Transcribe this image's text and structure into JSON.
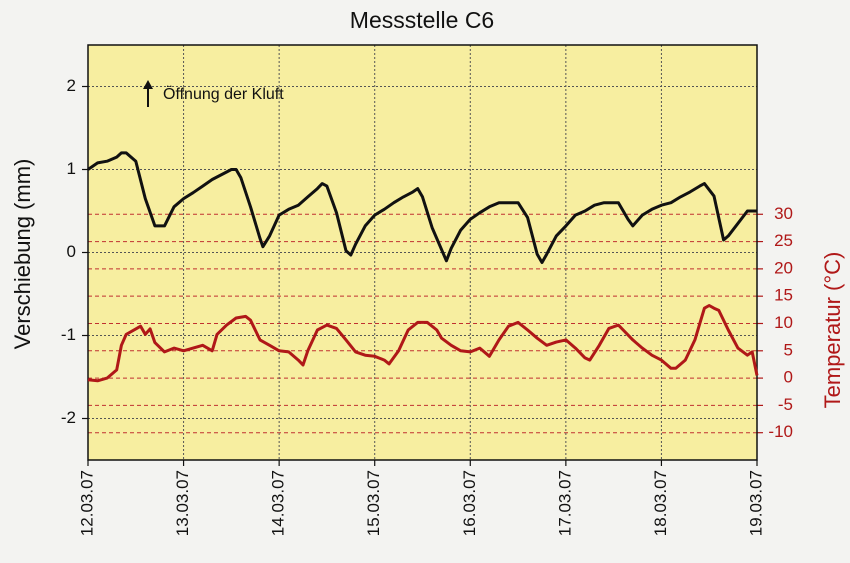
{
  "chart_data": {
    "type": "line",
    "title": "Messstelle C6",
    "y_label": "Verschiebung (mm)",
    "y2_label": "Temperatur (°C)",
    "annotation": "Öffnung der Kluft",
    "xlim": [
      0,
      7
    ],
    "xticks": [
      {
        "value": 0,
        "label": "12.03.07"
      },
      {
        "value": 1,
        "label": "13.03.07"
      },
      {
        "value": 2,
        "label": "14.03.07"
      },
      {
        "value": 3,
        "label": "15.03.07"
      },
      {
        "value": 4,
        "label": "16.03.07"
      },
      {
        "value": 5,
        "label": "17.03.07"
      },
      {
        "value": 6,
        "label": "18.03.07"
      },
      {
        "value": 7,
        "label": "19.03.07"
      }
    ],
    "ylim": [
      -2.5,
      2.5
    ],
    "yticks": [
      -2,
      -1,
      0,
      1,
      2
    ],
    "y2lim": [
      -15,
      61
    ],
    "y2ticks": [
      30,
      25,
      20,
      15,
      10,
      5,
      0,
      -5,
      -10
    ],
    "grid": true,
    "background": "#f7eea0",
    "series": [
      {
        "color": "#111111",
        "x": [
          0,
          0.1,
          0.2,
          0.3,
          0.35,
          0.4,
          0.5,
          0.6,
          0.7,
          0.8,
          0.9,
          1.0,
          1.1,
          1.2,
          1.3,
          1.4,
          1.5,
          1.55,
          1.6,
          1.7,
          1.8,
          1.83,
          1.9,
          2.0,
          2.1,
          2.2,
          2.3,
          2.4,
          2.45,
          2.5,
          2.6,
          2.7,
          2.75,
          2.8,
          2.9,
          3.0,
          3.1,
          3.2,
          3.3,
          3.4,
          3.45,
          3.5,
          3.6,
          3.75,
          3.8,
          3.9,
          4.0,
          4.1,
          4.2,
          4.3,
          4.5,
          4.6,
          4.7,
          4.75,
          4.8,
          4.9,
          5.0,
          5.1,
          5.2,
          5.3,
          5.4,
          5.55,
          5.65,
          5.7,
          5.8,
          5.9,
          6.0,
          6.1,
          6.2,
          6.3,
          6.4,
          6.45,
          6.55,
          6.65,
          6.7,
          6.8,
          6.9,
          7.0
        ],
        "values": [
          1.0,
          1.08,
          1.1,
          1.15,
          1.2,
          1.2,
          1.1,
          0.65,
          0.32,
          0.32,
          0.55,
          0.65,
          0.72,
          0.8,
          0.88,
          0.94,
          1.0,
          1.0,
          0.9,
          0.55,
          0.17,
          0.07,
          0.2,
          0.45,
          0.52,
          0.57,
          0.67,
          0.77,
          0.83,
          0.8,
          0.48,
          0.02,
          -0.03,
          0.1,
          0.32,
          0.45,
          0.52,
          0.6,
          0.67,
          0.73,
          0.77,
          0.67,
          0.3,
          -0.1,
          0.05,
          0.27,
          0.4,
          0.48,
          0.55,
          0.6,
          0.6,
          0.42,
          -0.02,
          -0.12,
          -0.02,
          0.2,
          0.32,
          0.45,
          0.5,
          0.57,
          0.6,
          0.6,
          0.4,
          0.32,
          0.45,
          0.52,
          0.57,
          0.6,
          0.67,
          0.73,
          0.8,
          0.83,
          0.68,
          0.15,
          0.2,
          0.35,
          0.5,
          0.5
        ]
      },
      {
        "color": "#b01818",
        "axis": "y2",
        "x": [
          0,
          0.1,
          0.2,
          0.3,
          0.35,
          0.4,
          0.5,
          0.55,
          0.6,
          0.65,
          0.7,
          0.8,
          0.9,
          1.0,
          1.1,
          1.2,
          1.3,
          1.35,
          1.45,
          1.55,
          1.65,
          1.7,
          1.8,
          1.9,
          2.0,
          2.1,
          2.2,
          2.25,
          2.3,
          2.4,
          2.5,
          2.6,
          2.7,
          2.8,
          2.9,
          3.0,
          3.1,
          3.15,
          3.25,
          3.35,
          3.45,
          3.55,
          3.65,
          3.7,
          3.8,
          3.9,
          4.0,
          4.1,
          4.2,
          4.3,
          4.4,
          4.5,
          4.6,
          4.7,
          4.8,
          4.9,
          5.0,
          5.1,
          5.2,
          5.25,
          5.35,
          5.45,
          5.55,
          5.6,
          5.7,
          5.8,
          5.9,
          6.0,
          6.1,
          6.15,
          6.25,
          6.35,
          6.45,
          6.5,
          6.55,
          6.6,
          6.7,
          6.8,
          6.9,
          6.95,
          7.0
        ],
        "values": [
          -0.3,
          -0.5,
          0,
          1.5,
          6,
          8,
          9,
          9.5,
          8,
          9,
          6.5,
          4.8,
          5.5,
          5,
          5.5,
          6,
          5,
          8,
          9.7,
          11,
          11.3,
          10.6,
          7,
          6,
          5,
          4.8,
          3.3,
          2.4,
          5,
          8.8,
          9.7,
          9.1,
          7,
          4.8,
          4.2,
          4,
          3.3,
          2.6,
          5,
          8.8,
          10.2,
          10.2,
          8.8,
          7.3,
          6,
          5,
          4.8,
          5.5,
          4,
          7,
          9.5,
          10.2,
          8.8,
          7.3,
          6,
          6.6,
          7,
          5.5,
          3.7,
          3.3,
          6,
          9.1,
          9.7,
          8.8,
          7,
          5.5,
          4.2,
          3.3,
          1.8,
          1.8,
          3.3,
          7,
          12.8,
          13.3,
          12.8,
          12.4,
          8.8,
          5.5,
          4.2,
          4.8,
          0.5
        ]
      }
    ]
  }
}
